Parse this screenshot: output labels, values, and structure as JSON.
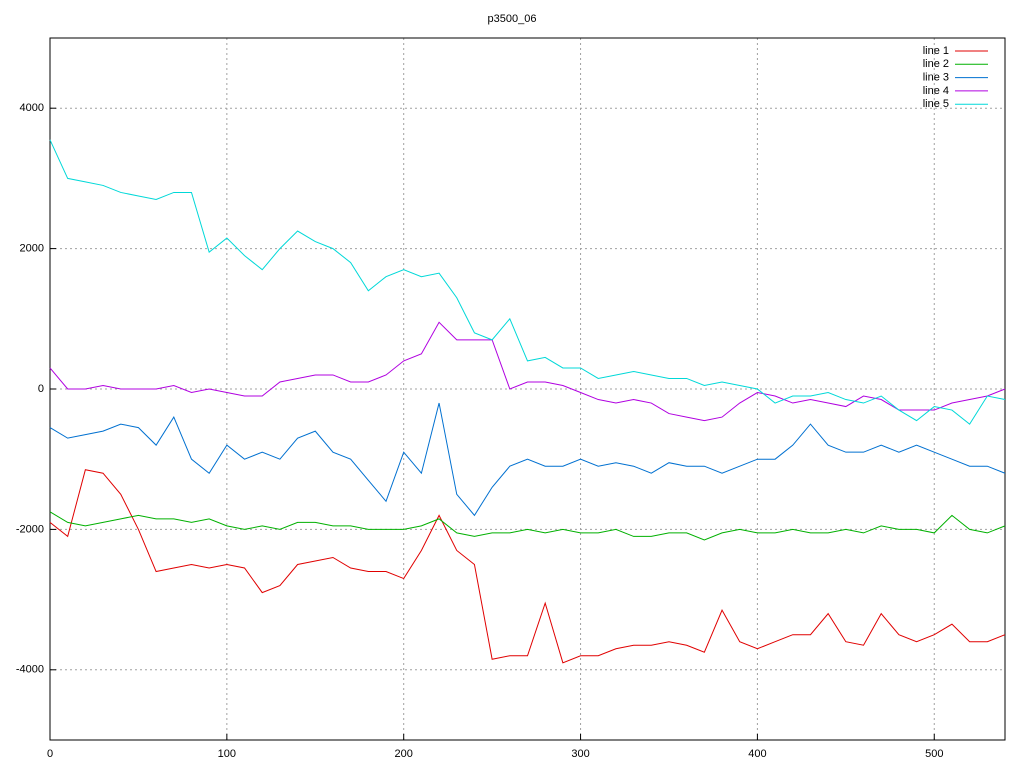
{
  "chart_data": {
    "type": "line",
    "title": "p3500_06",
    "x": [
      0,
      10,
      20,
      30,
      40,
      50,
      60,
      70,
      80,
      90,
      100,
      110,
      120,
      130,
      140,
      150,
      160,
      170,
      180,
      190,
      200,
      210,
      220,
      230,
      240,
      250,
      260,
      270,
      280,
      290,
      300,
      310,
      320,
      330,
      340,
      350,
      360,
      370,
      380,
      390,
      400,
      410,
      420,
      430,
      440,
      450,
      460,
      470,
      480,
      490,
      500,
      510,
      520,
      530,
      540
    ],
    "series": [
      {
        "name": "line 1",
        "color": "#e00000",
        "values": [
          -1900,
          -2100,
          -1150,
          -1200,
          -1500,
          -2000,
          -2600,
          -2550,
          -2500,
          -2550,
          -2500,
          -2550,
          -2900,
          -2800,
          -2500,
          -2450,
          -2400,
          -2550,
          -2600,
          -2600,
          -2700,
          -2300,
          -1800,
          -2300,
          -2500,
          -3850,
          -3800,
          -3800,
          -3050,
          -3900,
          -3800,
          -3800,
          -3700,
          -3650,
          -3650,
          -3600,
          -3650,
          -3750,
          -3150,
          -3600,
          -3700,
          -3600,
          -3500,
          -3500,
          -3200,
          -3600,
          -3650,
          -3200,
          -3500,
          -3600,
          -3500,
          -3350,
          -3600,
          -3600,
          -3500
        ]
      },
      {
        "name": "line 2",
        "color": "#00b000",
        "values": [
          -1750,
          -1900,
          -1950,
          -1900,
          -1850,
          -1800,
          -1850,
          -1850,
          -1900,
          -1850,
          -1950,
          -2000,
          -1950,
          -2000,
          -1900,
          -1900,
          -1950,
          -1950,
          -2000,
          -2000,
          -2000,
          -1950,
          -1850,
          -2050,
          -2100,
          -2050,
          -2050,
          -2000,
          -2050,
          -2000,
          -2050,
          -2050,
          -2000,
          -2100,
          -2100,
          -2050,
          -2050,
          -2150,
          -2050,
          -2000,
          -2050,
          -2050,
          -2000,
          -2050,
          -2050,
          -2000,
          -2050,
          -1950,
          -2000,
          -2000,
          -2050,
          -1800,
          -2000,
          -2050,
          -1950
        ]
      },
      {
        "name": "line 3",
        "color": "#0070d0",
        "values": [
          -550,
          -700,
          -650,
          -600,
          -500,
          -550,
          -800,
          -400,
          -1000,
          -1200,
          -800,
          -1000,
          -900,
          -1000,
          -700,
          -600,
          -900,
          -1000,
          -1300,
          -1600,
          -900,
          -1200,
          -200,
          -1500,
          -1800,
          -1400,
          -1100,
          -1000,
          -1100,
          -1100,
          -1000,
          -1100,
          -1050,
          -1100,
          -1200,
          -1050,
          -1100,
          -1100,
          -1200,
          -1100,
          -1000,
          -1000,
          -800,
          -500,
          -800,
          -900,
          -900,
          -800,
          -900,
          -800,
          -900,
          -1000,
          -1100,
          -1100,
          -1200
        ]
      },
      {
        "name": "line 4",
        "color": "#b000e0",
        "values": [
          300,
          0,
          0,
          50,
          0,
          0,
          0,
          50,
          -50,
          0,
          -50,
          -100,
          -100,
          100,
          150,
          200,
          200,
          100,
          100,
          200,
          400,
          500,
          950,
          700,
          700,
          700,
          0,
          100,
          100,
          50,
          -50,
          -150,
          -200,
          -150,
          -200,
          -350,
          -400,
          -450,
          -400,
          -200,
          -50,
          -100,
          -200,
          -150,
          -200,
          -250,
          -100,
          -150,
          -300,
          -300,
          -300,
          -200,
          -150,
          -100,
          0
        ]
      },
      {
        "name": "line 5",
        "color": "#00d8d8",
        "values": [
          3550,
          3000,
          2950,
          2900,
          2800,
          2750,
          2700,
          2800,
          2800,
          1950,
          2150,
          1900,
          1700,
          2000,
          2250,
          2100,
          2000,
          1800,
          1400,
          1600,
          1700,
          1600,
          1650,
          1300,
          800,
          700,
          1000,
          400,
          450,
          300,
          300,
          150,
          200,
          250,
          200,
          150,
          150,
          50,
          100,
          50,
          0,
          -200,
          -100,
          -100,
          -50,
          -150,
          -200,
          -100,
          -300,
          -450,
          -250,
          -300,
          -500,
          -100,
          -150
        ]
      }
    ],
    "xlim": [
      0,
      540
    ],
    "ylim": [
      -5000,
      5000
    ],
    "xticks": [
      0,
      100,
      200,
      300,
      400,
      500
    ],
    "yticks": [
      -4000,
      -2000,
      0,
      2000,
      4000
    ],
    "grid": true,
    "legend": "top-right"
  }
}
